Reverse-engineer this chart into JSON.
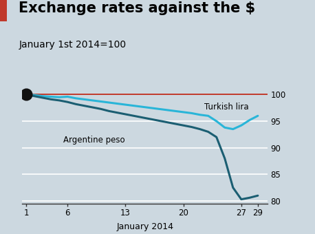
{
  "title": "Exchange rates against the $",
  "subtitle": "January 1st 2014=100",
  "xlabel": "January 2014",
  "background_color": "#ccd8e0",
  "title_fontsize": 15,
  "subtitle_fontsize": 10,
  "ylim": [
    79.5,
    101.5
  ],
  "yticks": [
    80,
    85,
    90,
    95,
    100
  ],
  "xticks": [
    1,
    6,
    13,
    20,
    27,
    29
  ],
  "red_line_y": 100,
  "dot_x": 1,
  "dot_y": 100,
  "turkish_lira_label": "Turkish lira",
  "argentine_peso_label": "Argentine peso",
  "turkish_lira_color": "#29b5d8",
  "argentine_peso_color": "#1b5e72",
  "red_line_color": "#c0392b",
  "dot_color": "#111111",
  "accent_bar_color": "#c0392b",
  "turkish_lira_x": [
    1,
    2,
    3,
    4,
    5,
    6,
    7,
    8,
    9,
    10,
    11,
    12,
    13,
    14,
    15,
    16,
    17,
    18,
    19,
    20,
    21,
    22,
    23,
    24,
    25,
    26,
    27,
    28,
    29
  ],
  "turkish_lira_y": [
    100,
    99.9,
    99.7,
    99.6,
    99.5,
    99.6,
    99.3,
    99.1,
    98.9,
    98.7,
    98.5,
    98.3,
    98.1,
    97.9,
    97.7,
    97.5,
    97.3,
    97.1,
    96.9,
    96.7,
    96.5,
    96.2,
    96.0,
    95.0,
    93.8,
    93.5,
    94.2,
    95.2,
    96.0
  ],
  "argentine_peso_x": [
    1,
    2,
    3,
    4,
    5,
    6,
    7,
    8,
    9,
    10,
    11,
    12,
    13,
    14,
    15,
    16,
    17,
    18,
    19,
    20,
    21,
    22,
    23,
    24,
    25,
    26,
    27,
    28,
    29
  ],
  "argentine_peso_y": [
    100,
    99.7,
    99.4,
    99.1,
    98.9,
    98.6,
    98.2,
    97.9,
    97.6,
    97.3,
    96.9,
    96.6,
    96.3,
    96.0,
    95.7,
    95.4,
    95.1,
    94.8,
    94.5,
    94.2,
    93.9,
    93.5,
    93.0,
    92.0,
    88.0,
    82.5,
    80.3,
    80.6,
    81.0
  ]
}
